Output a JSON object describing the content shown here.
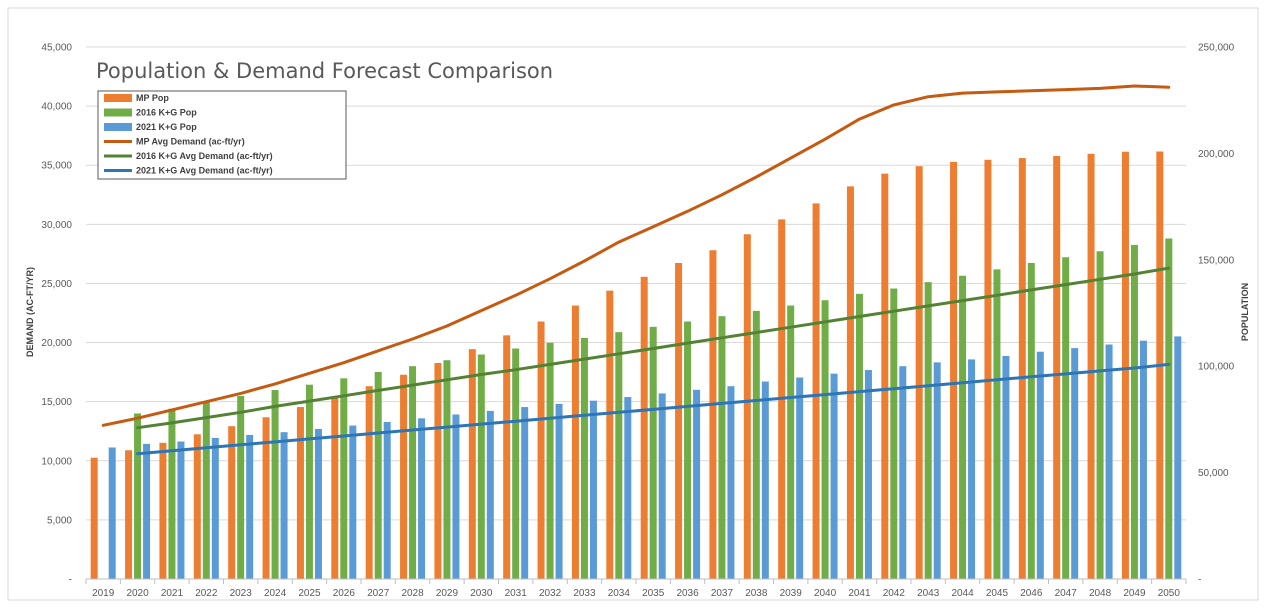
{
  "chart_data": {
    "type": "bar",
    "title": "Population & Demand Forecast Comparison",
    "ylabel_left": "DEMAND (AC-FT/YR)",
    "ylabel_right": "POPULATION",
    "ylim_left": [
      0,
      45000
    ],
    "ylim_right": [
      0,
      250000
    ],
    "yticks_left": [
      "-",
      "5,000",
      "10,000",
      "15,000",
      "20,000",
      "25,000",
      "30,000",
      "35,000",
      "40,000",
      "45,000"
    ],
    "yticks_right": [
      "-",
      "50,000",
      "100,000",
      "150,000",
      "200,000",
      "250,000"
    ],
    "grid": true,
    "legend_position": "top-left",
    "categories": [
      "2019",
      "2020",
      "2021",
      "2022",
      "2023",
      "2024",
      "2025",
      "2026",
      "2027",
      "2028",
      "2029",
      "2030",
      "2031",
      "2032",
      "2033",
      "2034",
      "2035",
      "2036",
      "2037",
      "2038",
      "2039",
      "2040",
      "2041",
      "2042",
      "2043",
      "2044",
      "2045",
      "2046",
      "2047",
      "2048",
      "2049",
      "2050"
    ],
    "bar_series": [
      {
        "name": "MP Pop",
        "color": "#ED7D31",
        "axis": "right",
        "values": [
          57000,
          60500,
          64000,
          68000,
          71800,
          76000,
          80800,
          85600,
          90600,
          96000,
          101500,
          108000,
          114500,
          121000,
          128500,
          135500,
          142000,
          148500,
          154500,
          162000,
          169000,
          176500,
          184500,
          190500,
          194000,
          196000,
          197000,
          197800,
          198800,
          199800,
          200800,
          200900
        ]
      },
      {
        "name": "2016 K+G Pop",
        "color": "#70AD47",
        "axis": "right",
        "values": [
          null,
          77800,
          80000,
          83000,
          86000,
          88800,
          91300,
          94300,
          97300,
          100000,
          102800,
          105500,
          108300,
          111000,
          113300,
          116000,
          118500,
          121000,
          123500,
          126000,
          128500,
          131000,
          134000,
          136500,
          139500,
          142500,
          145500,
          148500,
          151200,
          154000,
          157000,
          160000
        ]
      },
      {
        "name": "2021 K+G Pop",
        "color": "#5B9BD5",
        "axis": "right",
        "values": [
          61800,
          63500,
          64600,
          66300,
          67700,
          69000,
          70500,
          72100,
          73800,
          75500,
          77300,
          79000,
          80800,
          82300,
          83800,
          85500,
          87200,
          88900,
          90600,
          92800,
          94700,
          96500,
          98200,
          100000,
          101800,
          103200,
          104800,
          106800,
          108500,
          110200,
          112000,
          114000
        ]
      }
    ],
    "line_series": [
      {
        "name": "MP Avg Demand (ac-ft/yr)",
        "color": "#C55A11",
        "axis": "left",
        "values": [
          13000,
          13600,
          14300,
          15000,
          15700,
          16500,
          17400,
          18300,
          19300,
          20300,
          21400,
          22700,
          24000,
          25400,
          26900,
          28500,
          29800,
          31100,
          32500,
          34000,
          35600,
          37200,
          38900,
          40100,
          40800,
          41100,
          41200,
          41300,
          41400,
          41500,
          41700,
          41600
        ]
      },
      {
        "name": "2016 K+G Avg Demand (ac-ft/yr)",
        "color": "#548235",
        "axis": "left",
        "values": [
          null,
          12800,
          13200,
          13650,
          14100,
          14600,
          15050,
          15500,
          15950,
          16400,
          16850,
          17300,
          17700,
          18150,
          18600,
          19050,
          19500,
          19950,
          20400,
          20850,
          21300,
          21750,
          22200,
          22650,
          23100,
          23550,
          24000,
          24450,
          24900,
          25350,
          25800,
          26300
        ]
      },
      {
        "name": "2021 K+G Avg Demand (ac-ft/yr)",
        "color": "#2E75B6",
        "axis": "left",
        "values": [
          null,
          10600,
          10850,
          11100,
          11350,
          11600,
          11850,
          12100,
          12350,
          12600,
          12850,
          13100,
          13350,
          13600,
          13850,
          14100,
          14350,
          14600,
          14850,
          15100,
          15350,
          15600,
          15850,
          16100,
          16350,
          16600,
          16850,
          17100,
          17350,
          17600,
          17850,
          18150
        ]
      }
    ]
  }
}
